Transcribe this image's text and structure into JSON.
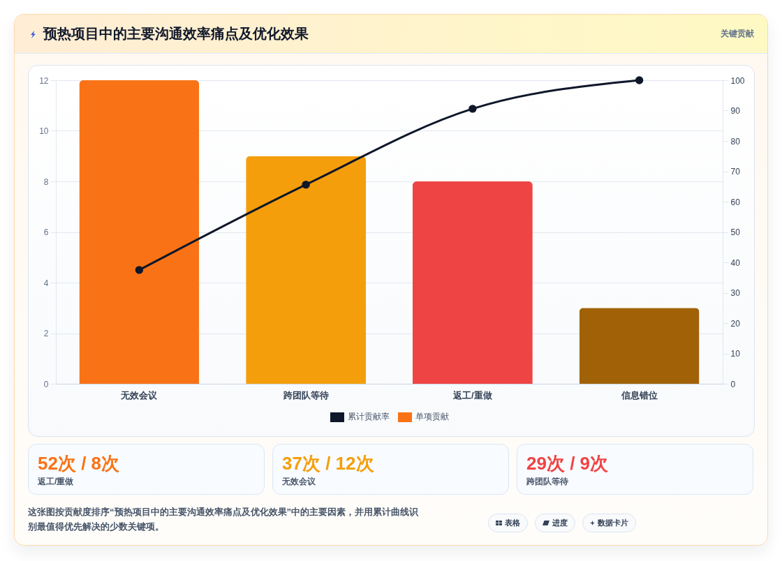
{
  "chart_data": {
    "type": "bar",
    "title": "预热项目中的主要沟通效率痛点及优化效果",
    "categories": [
      "无效会议",
      "跨团队等待",
      "返工/重做",
      "信息错位"
    ],
    "series": [
      {
        "name": "累计贡献率",
        "type": "line",
        "axis": "y2",
        "color": "#0f172a",
        "values": [
          37.5,
          65.6,
          90.6,
          100
        ]
      },
      {
        "name": "单项贡献",
        "color": "#f97316",
        "colors": [
          "#f97316",
          "#f59e0b",
          "#ef4444",
          "#a16207"
        ],
        "values": [
          12,
          9,
          8,
          3
        ]
      }
    ],
    "ylim": [
      0,
      12
    ],
    "yticks": [
      0,
      2,
      4,
      6,
      8,
      10,
      12
    ],
    "y2lim": [
      0,
      100
    ],
    "y2ticks": [
      0,
      10,
      20,
      30,
      40,
      50,
      60,
      70,
      80,
      90,
      100
    ],
    "grid": "y",
    "legend": "bottom",
    "marker": "circle",
    "annotations": [
      "关键贡献",
      "52次 / 8次",
      "返工/重做",
      "37次 / 12次",
      "无效会议",
      "29次 / 9次",
      "跨团队等待",
      "这张图按贡献度排序“预热项目中的主要沟通效率痛点及优化效果”中的主要因素，并用累计曲线识别最值得优先解决的少数关键项。",
      "表格",
      "进度",
      "数据卡片"
    ]
  }
}
